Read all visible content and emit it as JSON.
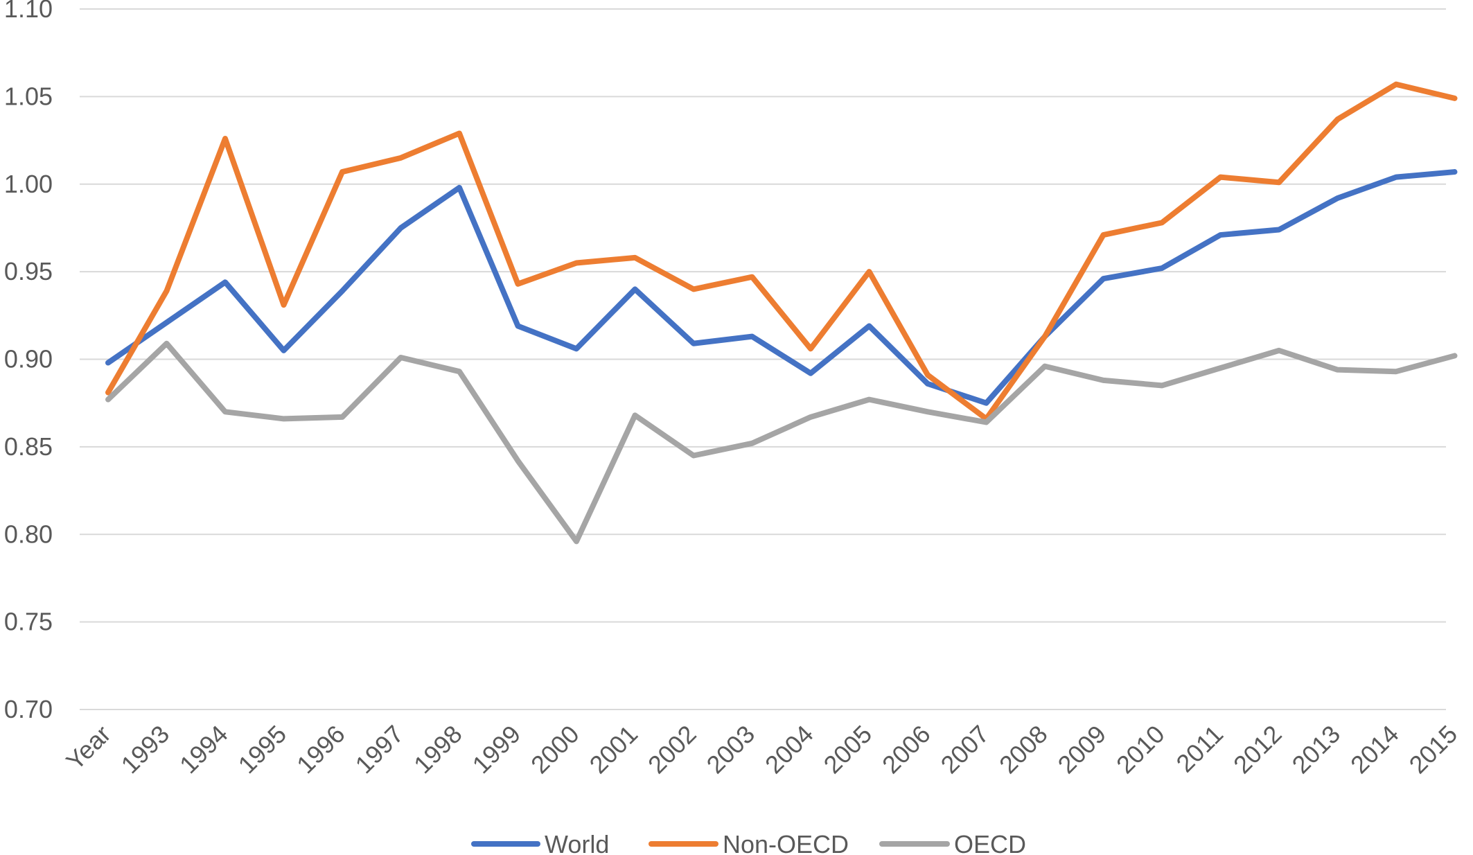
{
  "chart_data": {
    "type": "line",
    "title": "",
    "xlabel": "",
    "ylabel": "",
    "ylim": [
      0.7,
      1.1
    ],
    "ytick_labels": [
      "0.70",
      "0.75",
      "0.80",
      "0.85",
      "0.90",
      "0.95",
      "1.00",
      "1.05",
      "1.10"
    ],
    "categories": [
      "Year",
      "1993",
      "1994",
      "1995",
      "1996",
      "1997",
      "1998",
      "1999",
      "2000",
      "2001",
      "2002",
      "2003",
      "2004",
      "2005",
      "2006",
      "2007",
      "2008",
      "2009",
      "2010",
      "2011",
      "2012",
      "2013",
      "2014",
      "2015"
    ],
    "grid": true,
    "legend_position": "bottom",
    "series": [
      {
        "name": "World",
        "color": "#4472C4",
        "values": [
          0.898,
          0.921,
          0.944,
          0.905,
          0.939,
          0.975,
          0.998,
          0.919,
          0.906,
          0.94,
          0.909,
          0.913,
          0.892,
          0.919,
          0.886,
          0.875,
          0.913,
          0.946,
          0.952,
          0.971,
          0.974,
          0.992,
          1.004,
          1.007
        ]
      },
      {
        "name": "Non-OECD",
        "color": "#ED7D31",
        "values": [
          0.881,
          0.939,
          1.026,
          0.931,
          1.007,
          1.015,
          1.029,
          0.943,
          0.955,
          0.958,
          0.94,
          0.947,
          0.906,
          0.95,
          0.891,
          0.866,
          0.913,
          0.971,
          0.978,
          1.004,
          1.001,
          1.037,
          1.057,
          1.049
        ]
      },
      {
        "name": "OECD",
        "color": "#A5A5A5",
        "values": [
          0.877,
          0.909,
          0.87,
          0.866,
          0.867,
          0.901,
          0.893,
          0.842,
          0.796,
          0.868,
          0.845,
          0.852,
          0.867,
          0.877,
          0.87,
          0.864,
          0.896,
          0.888,
          0.885,
          0.895,
          0.905,
          0.894,
          0.893,
          0.902
        ]
      }
    ]
  }
}
